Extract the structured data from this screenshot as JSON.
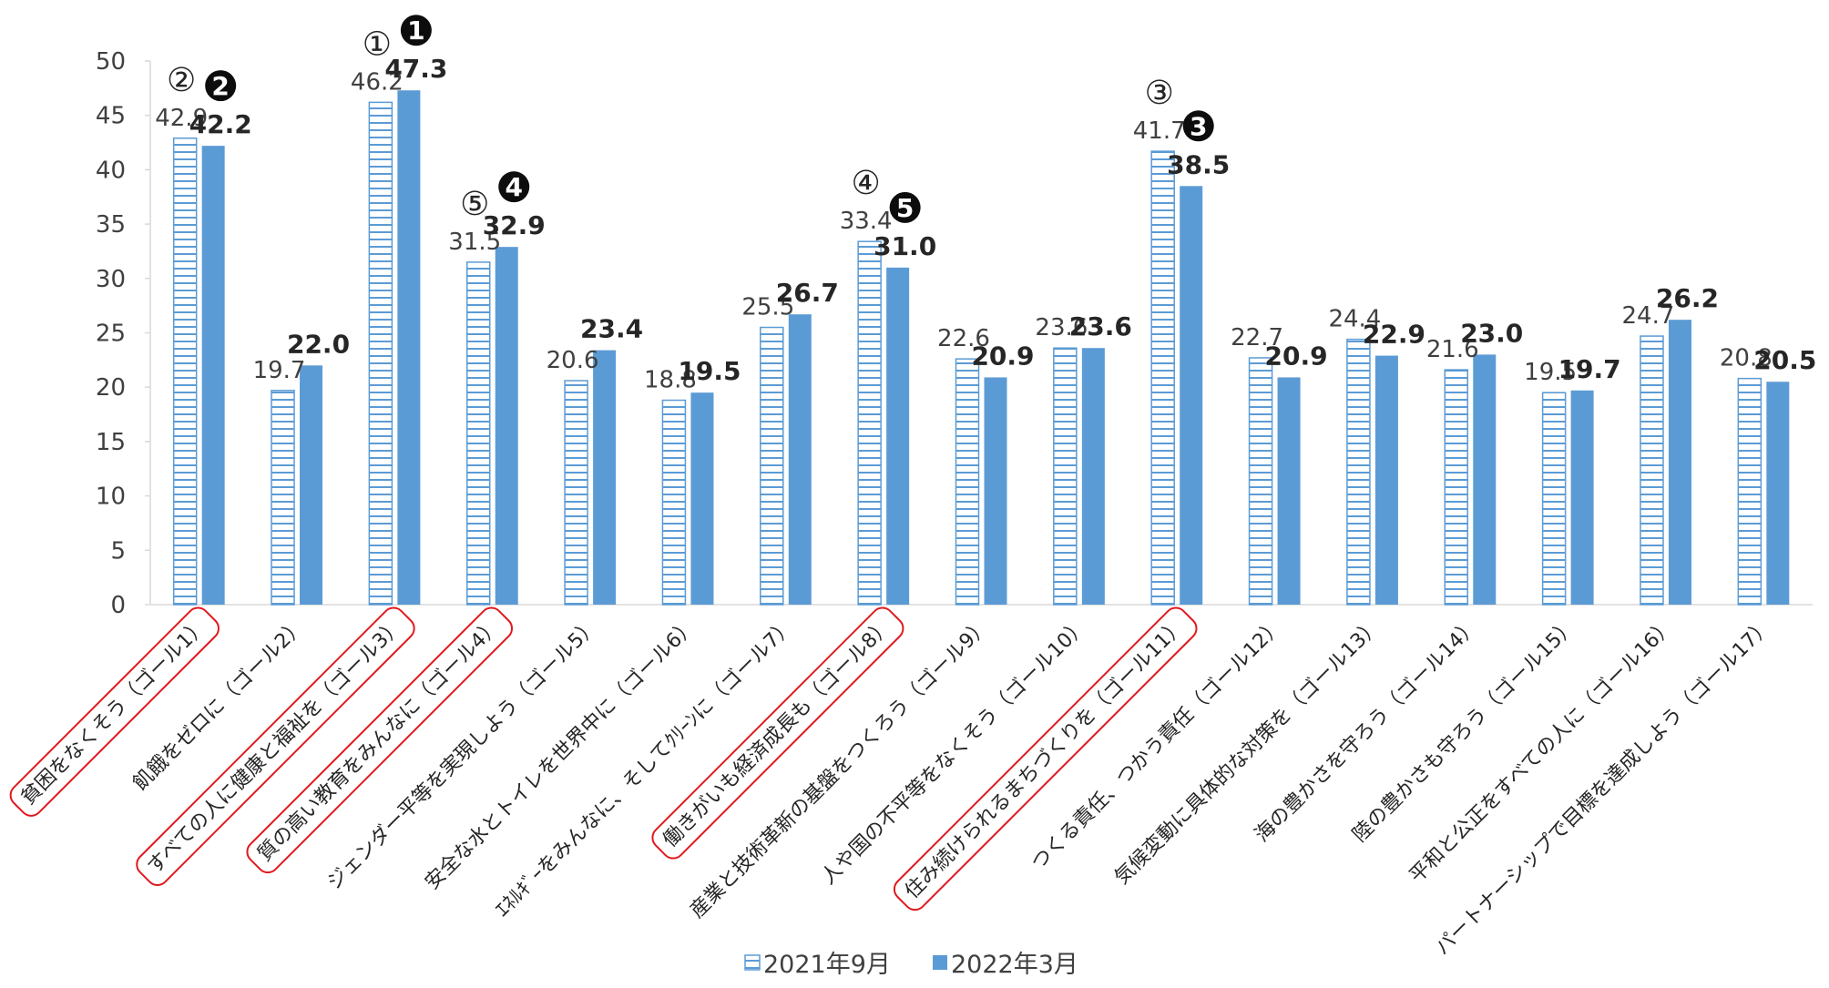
{
  "chart_data": {
    "type": "bar",
    "title": "",
    "xlabel": "",
    "ylabel": "",
    "ylim": [
      0,
      50
    ],
    "y_ticks": [
      "0",
      "5",
      "10",
      "15",
      "20",
      "25",
      "30",
      "35",
      "40",
      "45",
      "50"
    ],
    "grid": false,
    "legend_position": "bottom",
    "categories": [
      "貧困をなくそう（ゴール1）",
      "飢餓をゼロに（ゴール2）",
      "すべての人に健康と福祉を（ゴール3）",
      "質の高い教育をみんなに（ゴール4）",
      "ジェンダー平等を実現しよう（ゴール5）",
      "安全な水とトイレを世界中に（ゴール6）",
      "ｴﾈﾙｷﾞｰをみんなに、そしてｸﾘｰﾝに（ゴール7）",
      "働きがいも経済成長も（ゴール8）",
      "産業と技術革新の基盤をつくろう（ゴール9）",
      "人や国の不平等をなくそう（ゴール10）",
      "住み続けられるまちづくりを（ゴール11）",
      "つくる責任、つかう責任（ゴール12）",
      "気候変動に具体的な対策を（ゴール13）",
      "海の豊かさを守ろう（ゴール14）",
      "陸の豊かさも守ろう（ゴール15）",
      "平和と公正をすべての人に（ゴール16）",
      "パートナーシップで目標を達成しよう（ゴール17）"
    ],
    "highlighted_categories": [
      0,
      2,
      3,
      7,
      10
    ],
    "series": [
      {
        "name": "2021年9月",
        "color": "#5b9bd5",
        "pattern": "horizontal-lines",
        "values": [
          42.9,
          19.7,
          46.2,
          31.5,
          20.6,
          18.8,
          25.5,
          33.4,
          22.6,
          23.6,
          41.7,
          22.7,
          24.4,
          21.6,
          19.5,
          24.7,
          20.8
        ],
        "labels": [
          "42.9",
          "19.7",
          "46.2",
          "31.5",
          "20.6",
          "18.8",
          "25.5",
          "33.4",
          "22.6",
          "23.6",
          "41.7",
          "22.7",
          "24.4",
          "21.6",
          "19.5",
          "24.7",
          "20.8"
        ],
        "ranks": [
          {
            "index": 2,
            "mark": "①"
          },
          {
            "index": 0,
            "mark": "②"
          },
          {
            "index": 10,
            "mark": "③"
          },
          {
            "index": 7,
            "mark": "④"
          },
          {
            "index": 3,
            "mark": "⑤"
          }
        ]
      },
      {
        "name": "2022年3月",
        "color": "#5b9bd5",
        "pattern": "solid",
        "values": [
          42.2,
          22.0,
          47.3,
          32.9,
          23.4,
          19.5,
          26.7,
          31.0,
          20.9,
          23.6,
          38.5,
          20.9,
          22.9,
          23.0,
          19.7,
          26.2,
          20.5
        ],
        "labels": [
          "42.2",
          "22.0",
          "47.3",
          "32.9",
          "23.4",
          "19.5",
          "26.7",
          "31.0",
          "20.9",
          "23.6",
          "38.5",
          "20.9",
          "22.9",
          "23.0",
          "19.7",
          "26.2",
          "20.5"
        ],
        "ranks": [
          {
            "index": 2,
            "mark": "1"
          },
          {
            "index": 0,
            "mark": "2"
          },
          {
            "index": 10,
            "mark": "3"
          },
          {
            "index": 3,
            "mark": "4"
          },
          {
            "index": 7,
            "mark": "5"
          }
        ]
      }
    ],
    "legend": [
      "2021年9月",
      "2022年3月"
    ]
  }
}
